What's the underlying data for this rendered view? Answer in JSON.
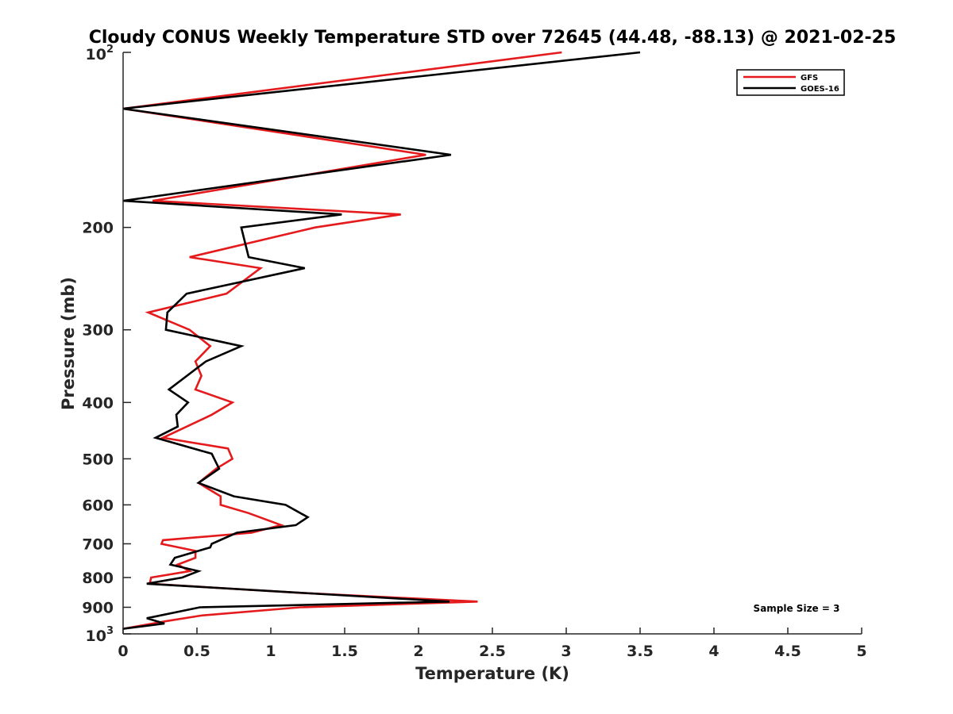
{
  "chart_data": {
    "type": "line",
    "title": "Cloudy CONUS Weekly Temperature STD over 72645 (44.48, -88.13) @ 2021-02-25",
    "xlabel": "Temperature (K)",
    "ylabel": "Pressure (mb)",
    "xlim": [
      0,
      5
    ],
    "ylim": [
      100,
      1000
    ],
    "y_scale": "log",
    "y_reversed": true,
    "x_ticks": [
      0,
      0.5,
      1,
      1.5,
      2,
      2.5,
      3,
      3.5,
      4,
      4.5,
      5
    ],
    "x_tick_labels": [
      "0",
      "0.5",
      "1",
      "1.5",
      "2",
      "2.5",
      "3",
      "3.5",
      "4",
      "4.5",
      "5"
    ],
    "y_ticks": [
      200,
      300,
      400,
      500,
      600,
      700,
      800,
      900
    ],
    "y_tick_labels": [
      "200",
      "300",
      "400",
      "500",
      "600",
      "700",
      "800",
      "900"
    ],
    "y_tick_decades": [
      {
        "value": 100,
        "base": "10",
        "exp": "2"
      },
      {
        "value": 1000,
        "base": "10",
        "exp": "3"
      }
    ],
    "grid": false,
    "legend_position": "top-right",
    "annotation": "Sample Size = 3",
    "series": [
      {
        "name": "GFS",
        "color": "#e41a1c",
        "points": [
          [
            2.97,
            100
          ],
          [
            0.0,
            125
          ],
          [
            2.05,
            150
          ],
          [
            0.2,
            180
          ],
          [
            1.88,
            190
          ],
          [
            1.3,
            200
          ],
          [
            0.45,
            225
          ],
          [
            0.93,
            235
          ],
          [
            0.7,
            260
          ],
          [
            0.17,
            280
          ],
          [
            0.45,
            300
          ],
          [
            0.59,
            320
          ],
          [
            0.49,
            340
          ],
          [
            0.53,
            360
          ],
          [
            0.49,
            380
          ],
          [
            0.74,
            400
          ],
          [
            0.6,
            420
          ],
          [
            0.27,
            460
          ],
          [
            0.71,
            480
          ],
          [
            0.74,
            500
          ],
          [
            0.63,
            520
          ],
          [
            0.51,
            550
          ],
          [
            0.66,
            580
          ],
          [
            0.66,
            600
          ],
          [
            0.85,
            620
          ],
          [
            1.07,
            650
          ],
          [
            0.87,
            670
          ],
          [
            0.27,
            690
          ],
          [
            0.26,
            700
          ],
          [
            0.49,
            720
          ],
          [
            0.49,
            740
          ],
          [
            0.37,
            760
          ],
          [
            0.45,
            780
          ],
          [
            0.19,
            800
          ],
          [
            0.18,
            820
          ],
          [
            1.2,
            850
          ],
          [
            2.4,
            880
          ],
          [
            1.2,
            900
          ],
          [
            0.53,
            930
          ],
          [
            0.3,
            950
          ],
          [
            0.0,
            980
          ]
        ]
      },
      {
        "name": "GOES-16",
        "color": "#000000",
        "points": [
          [
            3.5,
            100
          ],
          [
            0.0,
            125
          ],
          [
            2.22,
            150
          ],
          [
            0.0,
            180
          ],
          [
            1.48,
            190
          ],
          [
            0.8,
            200
          ],
          [
            0.85,
            225
          ],
          [
            1.23,
            235
          ],
          [
            0.43,
            260
          ],
          [
            0.3,
            280
          ],
          [
            0.29,
            300
          ],
          [
            0.8,
            320
          ],
          [
            0.56,
            340
          ],
          [
            0.31,
            380
          ],
          [
            0.44,
            400
          ],
          [
            0.36,
            420
          ],
          [
            0.37,
            440
          ],
          [
            0.22,
            460
          ],
          [
            0.6,
            490
          ],
          [
            0.65,
            520
          ],
          [
            0.51,
            550
          ],
          [
            0.75,
            580
          ],
          [
            1.1,
            600
          ],
          [
            1.25,
            630
          ],
          [
            1.17,
            650
          ],
          [
            0.77,
            670
          ],
          [
            0.6,
            700
          ],
          [
            0.59,
            710
          ],
          [
            0.35,
            740
          ],
          [
            0.32,
            760
          ],
          [
            0.51,
            780
          ],
          [
            0.4,
            800
          ],
          [
            0.16,
            820
          ],
          [
            2.21,
            880
          ],
          [
            0.52,
            900
          ],
          [
            0.16,
            940
          ],
          [
            0.28,
            960
          ],
          [
            0.0,
            980
          ]
        ]
      }
    ]
  }
}
